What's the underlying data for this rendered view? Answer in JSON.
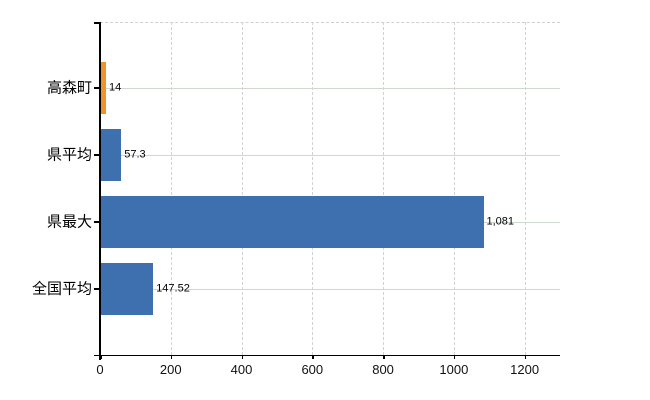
{
  "chart_data": {
    "type": "bar",
    "orientation": "horizontal",
    "title": "",
    "xlabel": "",
    "ylabel": "",
    "legend": "none",
    "grid": {
      "vertical": "dashed",
      "horizontal": "solid-at-category-centers",
      "top_border": "dashed"
    },
    "background_color": "#ffffff",
    "axis_color": "#000000",
    "vertical_gridline_color": "#d6cfd6",
    "horizontal_gridline_color": "#cfd8cf",
    "xlim": [
      0,
      1300
    ],
    "x_ticks": [
      0,
      200,
      400,
      600,
      800,
      1000,
      1200
    ],
    "x_tick_labels": [
      "0",
      "200",
      "400",
      "600",
      "800",
      "1000",
      "1200"
    ],
    "categories": [
      "高森町",
      "県平均",
      "県最大",
      "全国平均"
    ],
    "series": [
      {
        "name": "values",
        "values": [
          14,
          57.3,
          1081,
          147.52
        ],
        "value_labels": [
          "14",
          "57.3",
          "1,081",
          "147.52"
        ],
        "bar_colors": [
          "#f2922d",
          "#3e6fae",
          "#3e6fae",
          "#3e6fae"
        ]
      }
    ]
  }
}
